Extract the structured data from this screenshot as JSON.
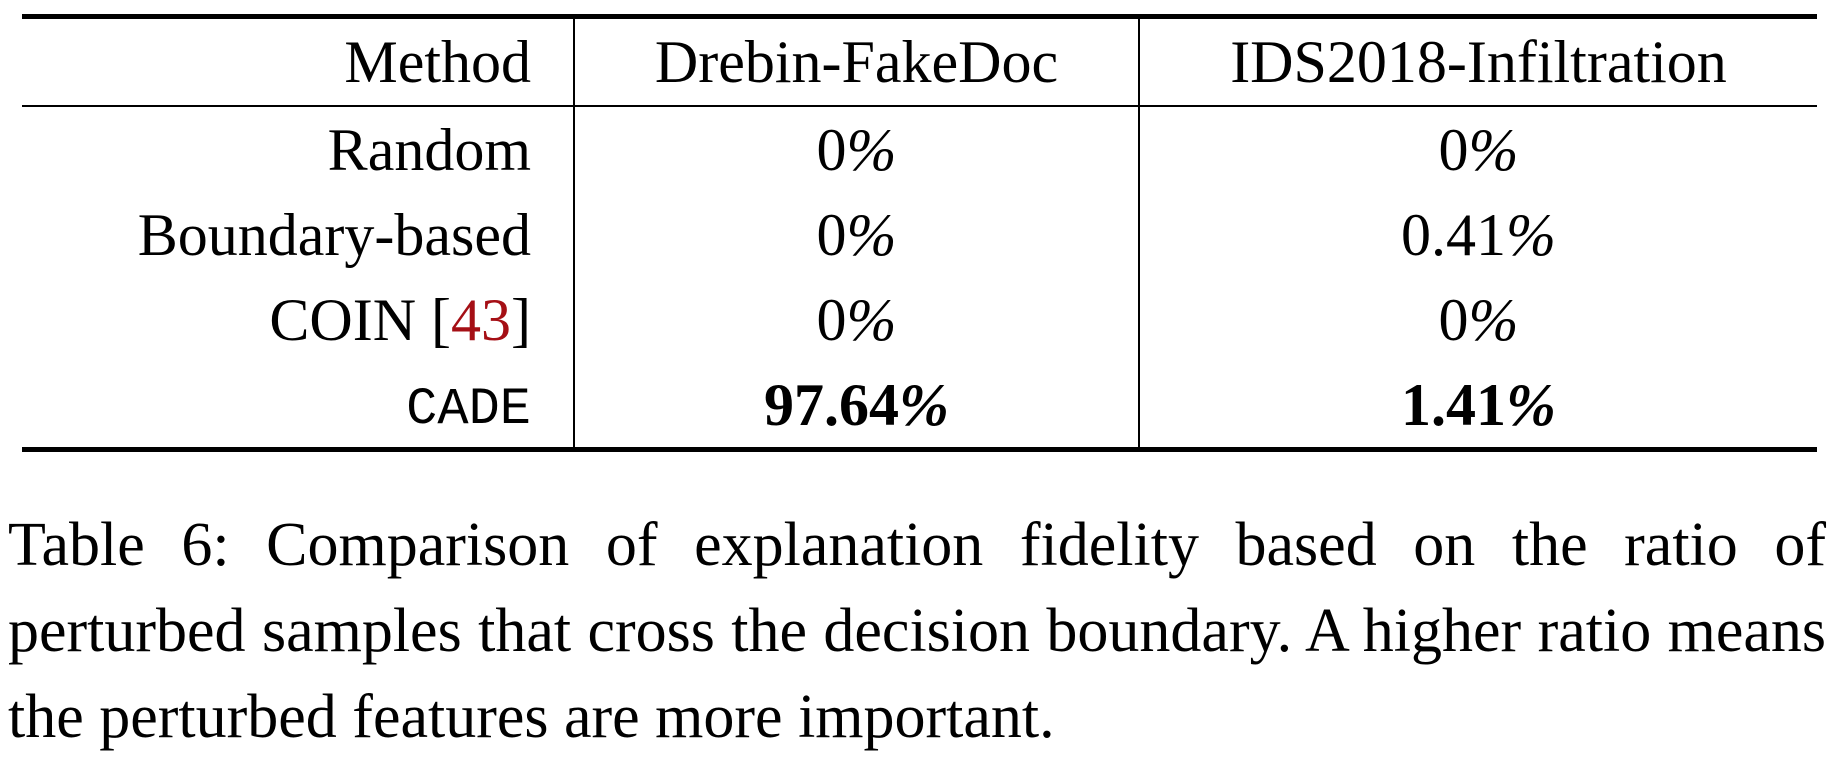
{
  "table": {
    "headers": {
      "method": "Method",
      "col1": "Drebin-FakeDoc",
      "col2": "IDS2018-Infiltration"
    },
    "rows": [
      {
        "method": "Random",
        "col1_num": "0",
        "col1_pct": "%",
        "col2_num": "0",
        "col2_pct": "%"
      },
      {
        "method": "Boundary-based",
        "col1_num": "0",
        "col1_pct": "%",
        "col2_num": "0.41",
        "col2_pct": "%"
      },
      {
        "method": "COIN [",
        "cite": "43",
        "method_close": "]",
        "col1_num": "0",
        "col1_pct": "%",
        "col2_num": "0",
        "col2_pct": "%"
      },
      {
        "method": "CADE",
        "col1_num": "97.64",
        "col1_pct": "%",
        "col2_num": "1.41",
        "col2_pct": "%"
      }
    ]
  },
  "caption": "Table 6: Comparison of explanation fidelity based on the ratio of perturbed samples that cross the decision boundary. A higher ratio means the perturbed features are more important."
}
